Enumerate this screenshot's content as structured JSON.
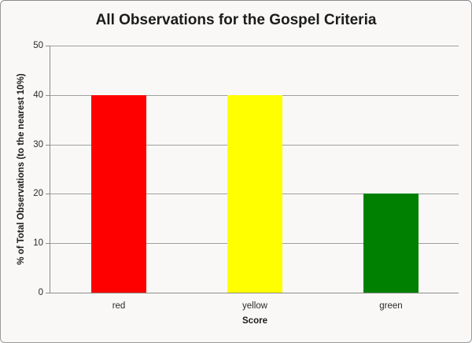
{
  "chart_data": {
    "type": "bar",
    "title": "All Observations for the Gospel Criteria",
    "categories": [
      "red",
      "yellow",
      "green"
    ],
    "values": [
      40,
      40,
      20
    ],
    "bar_colors": [
      "#ff0000",
      "#ffff00",
      "#008000"
    ],
    "xlabel": "Score",
    "ylabel": "% of Total Observations (to the nearest 10%)",
    "ylim": [
      0,
      50
    ],
    "yticks": [
      0,
      10,
      20,
      30,
      40,
      50
    ],
    "grid": "horizontal",
    "legend": "none",
    "background_color": "#f9f8f6"
  }
}
